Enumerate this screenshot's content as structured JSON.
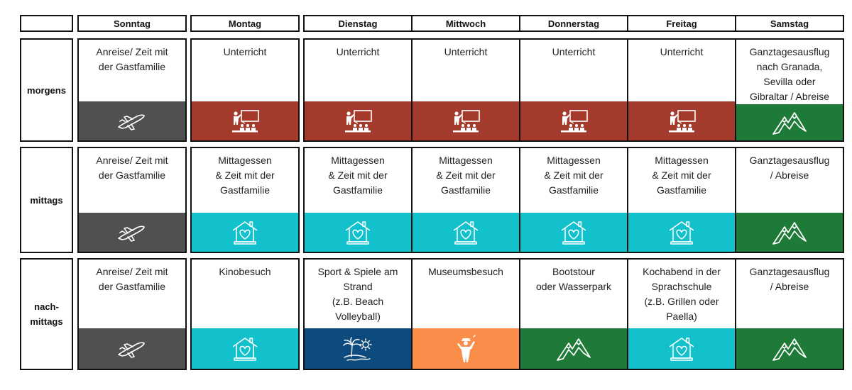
{
  "days": [
    "Sonntag",
    "Montag",
    "Dienstag",
    "Mittwoch",
    "Donnerstag",
    "Freitag",
    "Samstag"
  ],
  "rows": [
    {
      "label": "morgens",
      "cells": [
        {
          "text": "Anreise/ Zeit mit\nder Gastfamilie",
          "icon": "airplane-icon",
          "color": "#505050"
        },
        {
          "text": "Unterricht",
          "icon": "classroom-teacher-icon",
          "color": "#a33a2b"
        },
        {
          "text": "Unterricht",
          "icon": "classroom-teacher-icon",
          "color": "#a33a2b"
        },
        {
          "text": "Unterricht",
          "icon": "classroom-teacher-icon",
          "color": "#a33a2b"
        },
        {
          "text": "Unterricht",
          "icon": "classroom-teacher-icon",
          "color": "#a33a2b"
        },
        {
          "text": "Unterricht",
          "icon": "classroom-teacher-icon",
          "color": "#a33a2b"
        },
        {
          "text": "Ganztagesausflug\nnach Granada,\nSevilla oder\nGibraltar / Abreise",
          "icon": "mountain-icon",
          "color": "#1e7a37"
        }
      ]
    },
    {
      "label": "mittags",
      "cells": [
        {
          "text": "Anreise/ Zeit mit\nder Gastfamilie",
          "icon": "airplane-icon",
          "color": "#505050"
        },
        {
          "text": "Mittagessen\n& Zeit mit der\nGastfamilie",
          "icon": "house-heart-icon",
          "color": "#13c1cc"
        },
        {
          "text": "Mittagessen\n& Zeit mit der\nGastfamilie",
          "icon": "house-heart-icon",
          "color": "#13c1cc"
        },
        {
          "text": "Mittagessen\n& Zeit mit der\nGastfamilie",
          "icon": "house-heart-icon",
          "color": "#13c1cc"
        },
        {
          "text": "Mittagessen\n& Zeit mit der\nGastfamilie",
          "icon": "house-heart-icon",
          "color": "#13c1cc"
        },
        {
          "text": "Mittagessen\n& Zeit mit der\nGastfamilie",
          "icon": "house-heart-icon",
          "color": "#13c1cc"
        },
        {
          "text": "Ganztagesausflug\n/ Abreise",
          "icon": "mountain-icon",
          "color": "#1e7a37"
        }
      ]
    },
    {
      "label": "nach-\nmittags",
      "cells": [
        {
          "text": "Anreise/ Zeit mit\nder Gastfamilie",
          "icon": "airplane-icon",
          "color": "#505050"
        },
        {
          "text": "Kinobesuch",
          "icon": "house-heart-icon",
          "color": "#13c1cc"
        },
        {
          "text": "Sport & Spiele am\nStrand\n(z.B. Beach\nVolleyball)",
          "icon": "beach-palm-icon",
          "color": "#0d4a7d"
        },
        {
          "text": "Museumsbesuch",
          "icon": "museum-person-icon",
          "color": "#fb8d4a"
        },
        {
          "text": "Bootstour\noder Wasserpark",
          "icon": "mountain-icon",
          "color": "#1e7a37"
        },
        {
          "text": "Kochabend in der\nSprachschule\n(z.B. Grillen oder\nPaella)",
          "icon": "house-heart-icon",
          "color": "#13c1cc"
        },
        {
          "text": "Ganztagesausflug\n/ Abreise",
          "icon": "mountain-icon",
          "color": "#1e7a37"
        }
      ]
    }
  ]
}
